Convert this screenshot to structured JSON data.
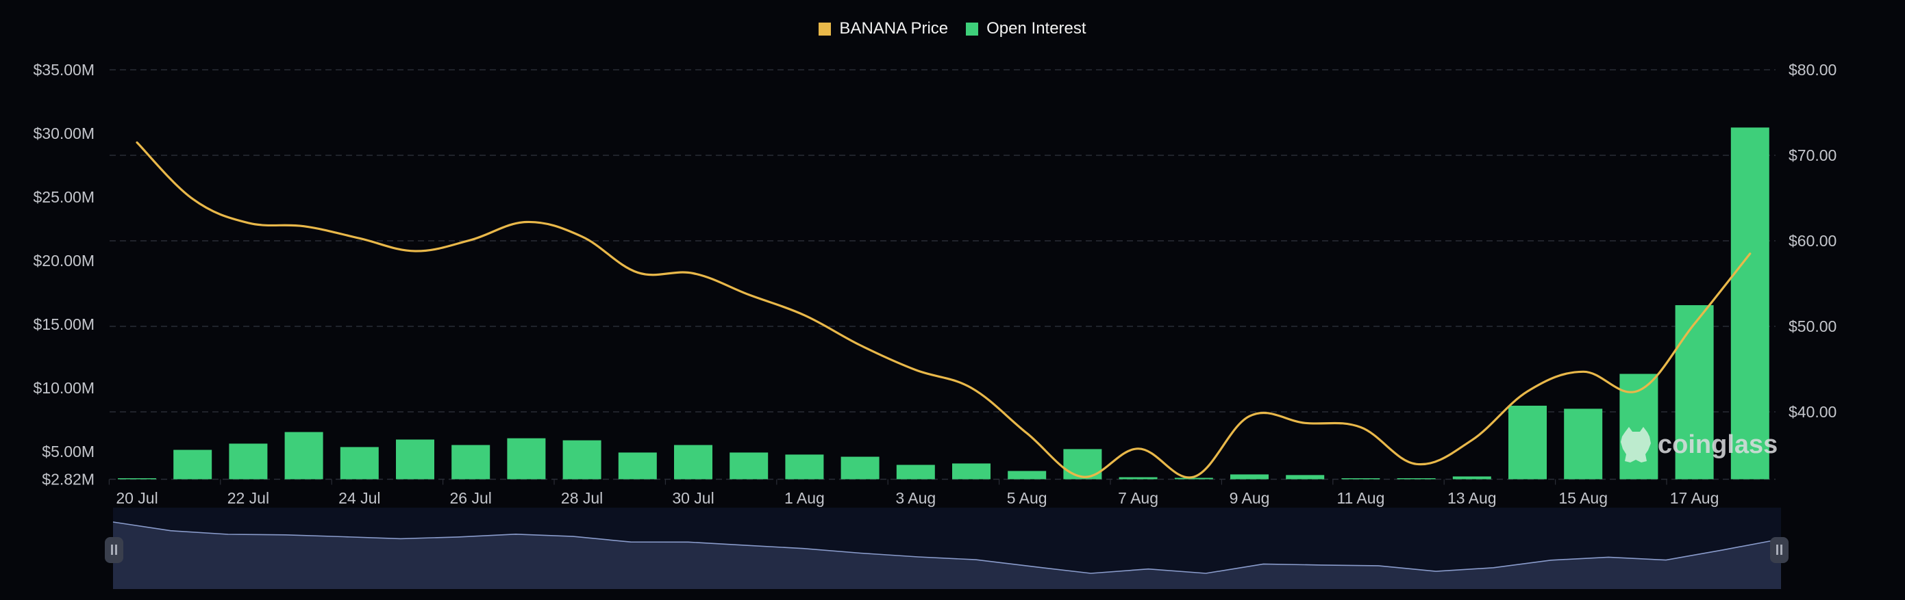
{
  "legend": {
    "items": [
      {
        "label": "BANANA Price",
        "color": "#e9b84a"
      },
      {
        "label": "Open Interest",
        "color": "#3ecf7a"
      }
    ]
  },
  "watermark": {
    "text": "coinglass"
  },
  "colors": {
    "background": "#05060b",
    "price_line": "#e9b84a",
    "oi_bar": "#3ecf7a",
    "grid": "#2a2d36",
    "axis_text": "#c4c6cc",
    "navigator_bg": "#0b1020",
    "navigator_fill": "#232b45",
    "navigator_line": "#8a9ccc"
  },
  "chart_data": {
    "type": "bar+line",
    "title": "",
    "legend_position": "top-center",
    "grid": true,
    "categories": [
      "20 Jul",
      "21 Jul",
      "22 Jul",
      "23 Jul",
      "24 Jul",
      "25 Jul",
      "26 Jul",
      "27 Jul",
      "28 Jul",
      "29 Jul",
      "30 Jul",
      "31 Jul",
      "1 Aug",
      "2 Aug",
      "3 Aug",
      "4 Aug",
      "5 Aug",
      "6 Aug",
      "7 Aug",
      "8 Aug",
      "9 Aug",
      "10 Aug",
      "11 Aug",
      "12 Aug",
      "13 Aug",
      "14 Aug",
      "15 Aug",
      "16 Aug",
      "17 Aug",
      "18 Aug"
    ],
    "x_tick_labels": [
      "20 Jul",
      "22 Jul",
      "24 Jul",
      "26 Jul",
      "28 Jul",
      "30 Jul",
      "1 Aug",
      "3 Aug",
      "5 Aug",
      "7 Aug",
      "9 Aug",
      "11 Aug",
      "13 Aug",
      "15 Aug",
      "17 Aug"
    ],
    "series": [
      {
        "name": "Open Interest",
        "type": "bar",
        "axis": "left",
        "unit": "USD millions",
        "values": [
          2.9,
          5.13,
          5.62,
          6.53,
          5.35,
          5.94,
          5.51,
          6.04,
          5.88,
          4.92,
          5.51,
          4.92,
          4.76,
          4.59,
          3.95,
          4.06,
          3.47,
          5.19,
          2.98,
          2.93,
          3.2,
          3.15,
          2.85,
          2.83,
          3.04,
          8.6,
          8.36,
          11.1,
          16.5,
          30.46
        ]
      },
      {
        "name": "BANANA Price",
        "type": "line",
        "axis": "right",
        "unit": "USD",
        "values": [
          71.5,
          64.9,
          62.1,
          61.7,
          60.3,
          58.8,
          60.1,
          62.2,
          60.5,
          56.3,
          56.2,
          53.7,
          51.3,
          47.8,
          44.9,
          42.8,
          37.5,
          32.4,
          35.7,
          32.4,
          39.5,
          38.7,
          38.2,
          33.9,
          36.7,
          42.4,
          44.7,
          42.5,
          50.3,
          58.5
        ]
      }
    ],
    "left_axis": {
      "label": "",
      "ticks": [
        "$35.00M",
        "$30.00M",
        "$25.00M",
        "$20.00M",
        "$15.00M",
        "$10.00M",
        "$5.00M",
        "$2.82M"
      ],
      "tick_values": [
        35,
        30,
        25,
        20,
        15,
        10,
        5,
        2.82
      ],
      "ylim": [
        2.82,
        35
      ]
    },
    "right_axis": {
      "label": "",
      "ticks": [
        "$80.00",
        "$70.00",
        "$60.00",
        "$50.00",
        "$40.00"
      ],
      "tick_values": [
        80,
        70,
        60,
        50,
        40
      ],
      "ylim": [
        32.16,
        80
      ]
    },
    "xlabel": "",
    "ylabel": "Open Interest",
    "y2label": "BANANA Price"
  }
}
